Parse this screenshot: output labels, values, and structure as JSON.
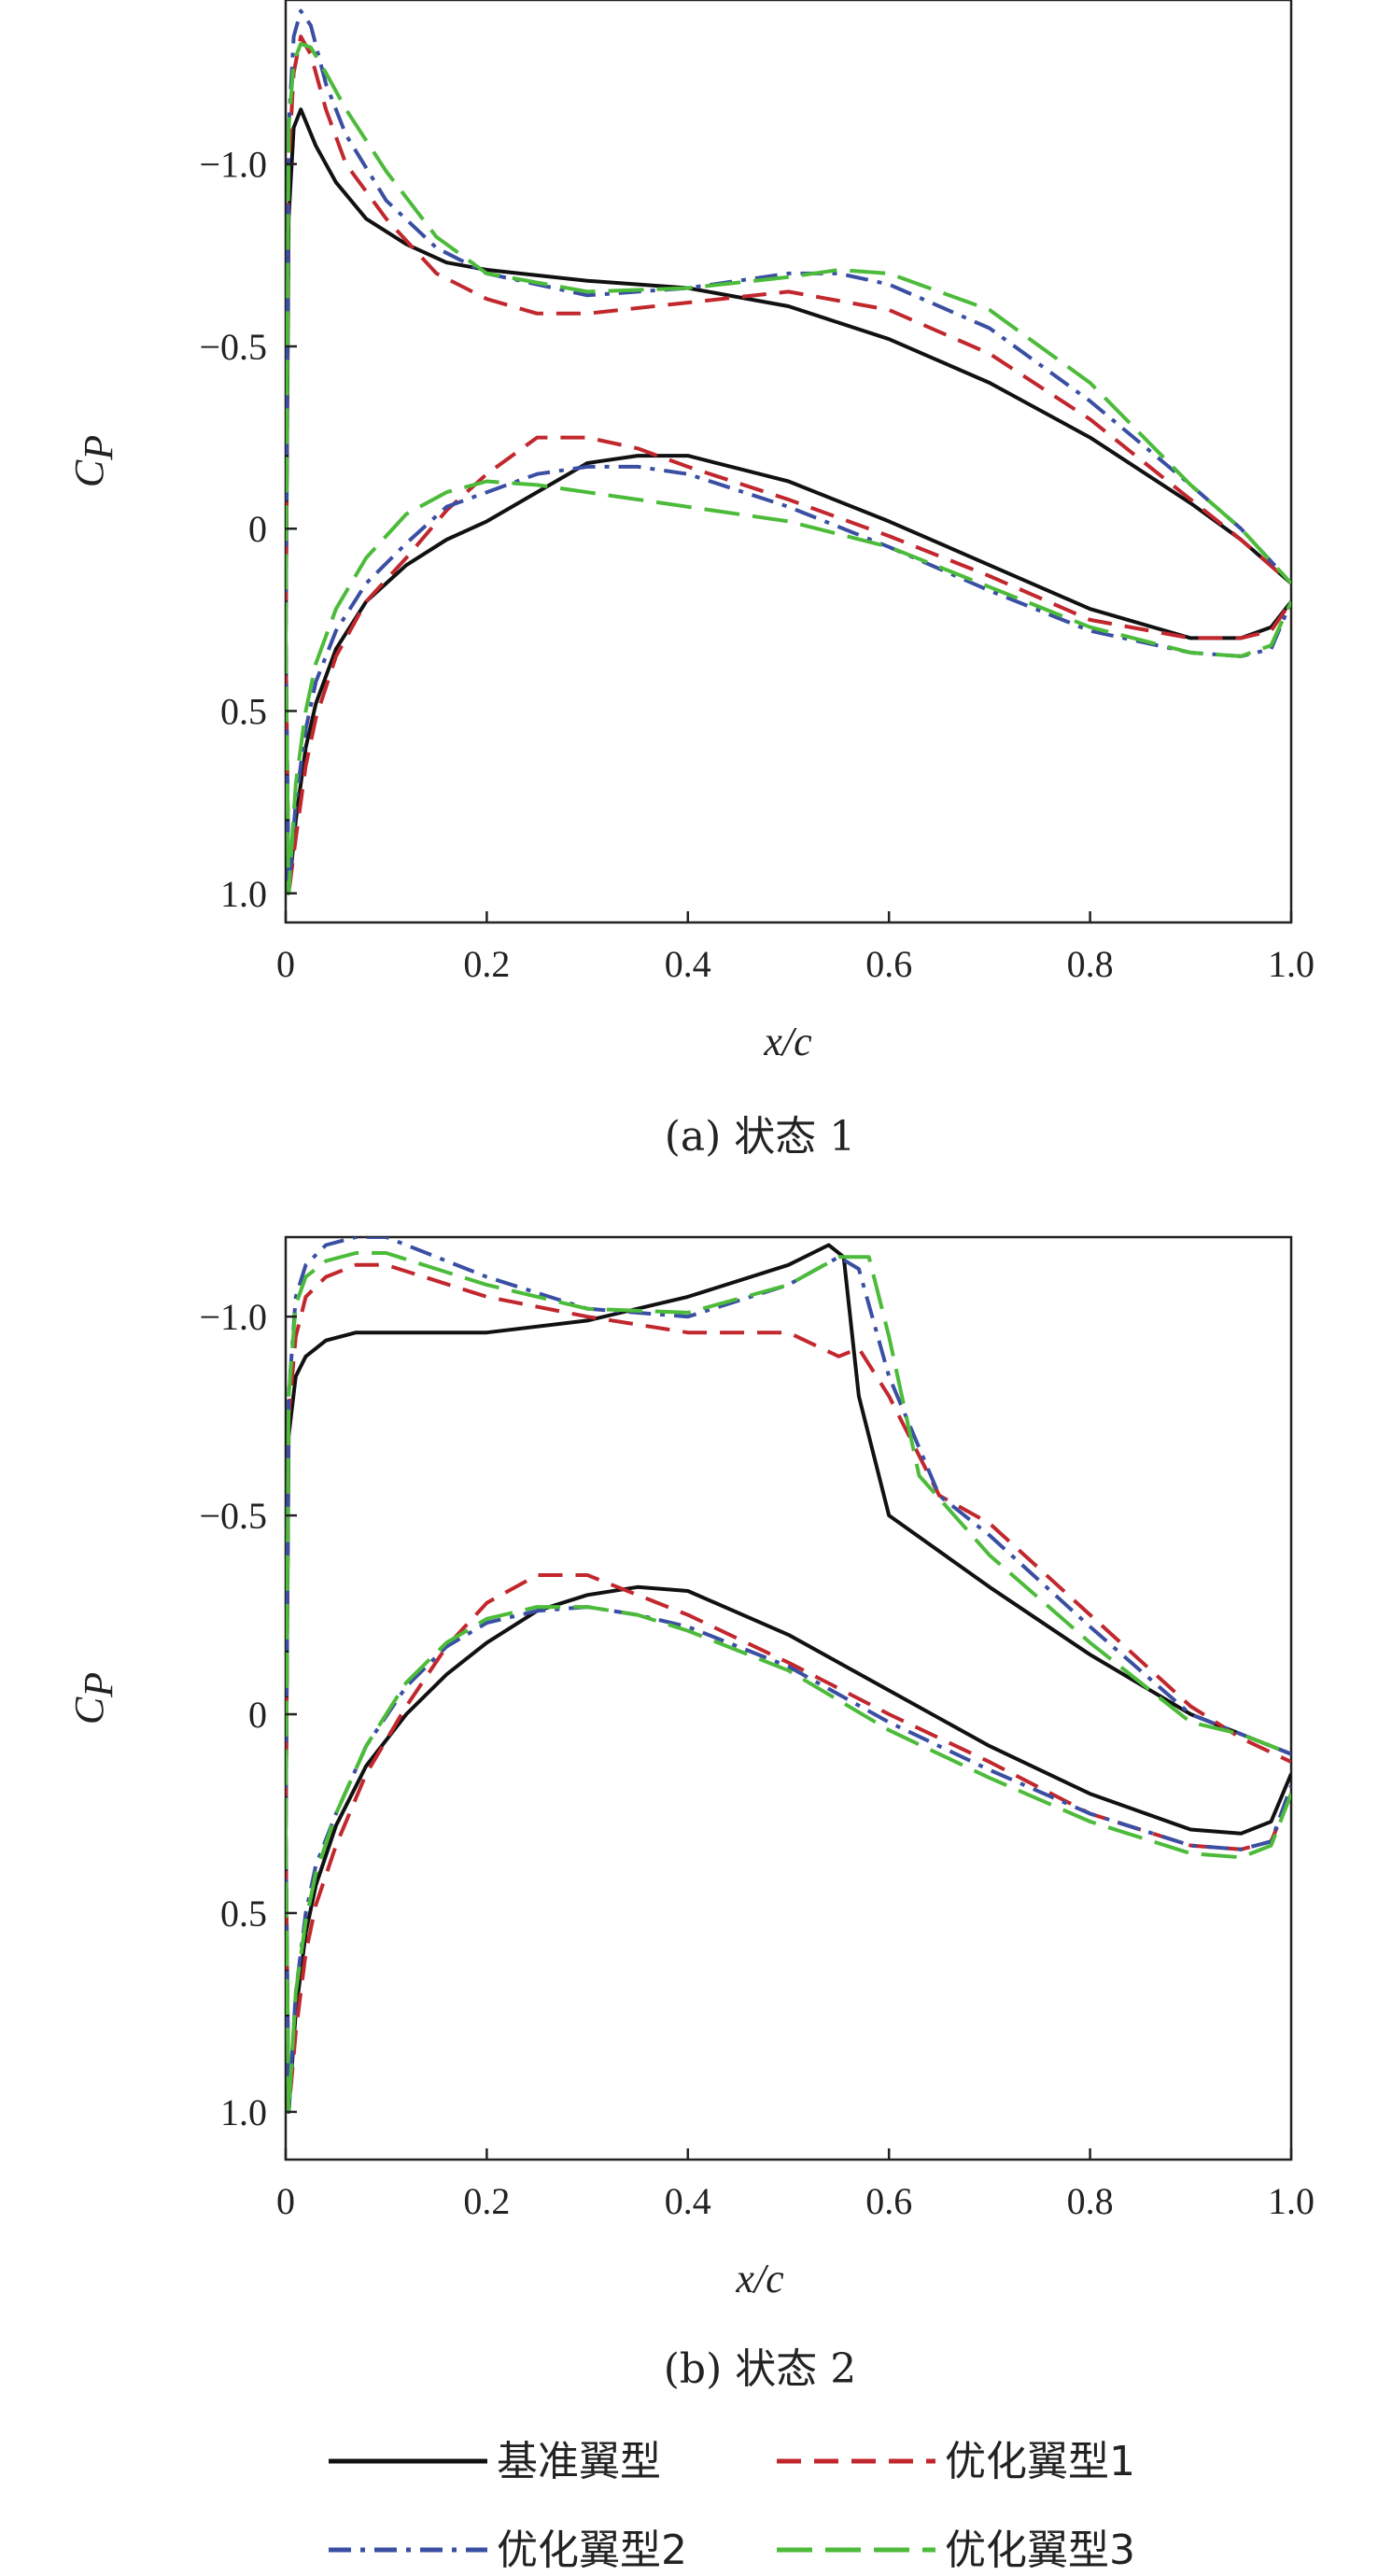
{
  "legend": [
    {
      "name": "基准翼型",
      "color": "#111111",
      "dash": "solid"
    },
    {
      "name": "优化翼型1",
      "color": "#c1272d",
      "dash": "dash"
    },
    {
      "name": "优化翼型2",
      "color": "#3a4fa3",
      "dash": "dashdot"
    },
    {
      "name": "优化翼型3",
      "color": "#4cbb3a",
      "dash": "longdash"
    }
  ],
  "chart_data": [
    {
      "type": "line",
      "caption": "(a) 状态 1",
      "xlabel": "x/c",
      "ylabel_main": "C",
      "ylabel_sub": "P",
      "xlim": [
        0,
        1.0
      ],
      "ylim": [
        1.08,
        -1.45
      ],
      "y_inverted": true,
      "xticks": [
        0,
        0.2,
        0.4,
        0.6,
        0.8,
        1.0
      ],
      "xtick_labels": [
        "0",
        "0.2",
        "0.4",
        "0.6",
        "0.8",
        "1.0"
      ],
      "yticks": [
        -1.0,
        -0.5,
        0,
        0.5,
        1.0
      ],
      "ytick_labels": [
        "−1.0",
        "−0.5",
        "0",
        "0.5",
        "1.0"
      ],
      "series": [
        {
          "name": "基准翼型",
          "upper": {
            "x": [
              0,
              0.003,
              0.008,
              0.015,
              0.03,
              0.05,
              0.08,
              0.12,
              0.16,
              0.2,
              0.3,
              0.4,
              0.5,
              0.6,
              0.7,
              0.8,
              0.9,
              0.95,
              1.0
            ],
            "y": [
              0.3,
              -0.85,
              -1.1,
              -1.15,
              -1.05,
              -0.95,
              -0.85,
              -0.78,
              -0.73,
              -0.71,
              -0.68,
              -0.66,
              -0.61,
              -0.52,
              -0.4,
              -0.25,
              -0.07,
              0.03,
              0.15
            ]
          },
          "lower": {
            "x": [
              0,
              0.003,
              0.01,
              0.02,
              0.03,
              0.05,
              0.08,
              0.12,
              0.16,
              0.2,
              0.3,
              0.35,
              0.4,
              0.5,
              0.6,
              0.7,
              0.8,
              0.9,
              0.95,
              0.98,
              1.0
            ],
            "y": [
              0.3,
              1.0,
              0.8,
              0.6,
              0.48,
              0.33,
              0.2,
              0.1,
              0.03,
              -0.02,
              -0.18,
              -0.2,
              -0.2,
              -0.13,
              -0.02,
              0.1,
              0.22,
              0.3,
              0.3,
              0.27,
              0.2
            ]
          }
        },
        {
          "name": "优化翼型1",
          "upper": {
            "x": [
              0,
              0.003,
              0.008,
              0.015,
              0.025,
              0.04,
              0.06,
              0.1,
              0.15,
              0.2,
              0.25,
              0.3,
              0.4,
              0.5,
              0.6,
              0.7,
              0.8,
              0.9,
              0.95,
              1.0
            ],
            "y": [
              0.3,
              -1.0,
              -1.25,
              -1.35,
              -1.3,
              -1.15,
              -1.0,
              -0.85,
              -0.7,
              -0.63,
              -0.59,
              -0.59,
              -0.62,
              -0.65,
              -0.6,
              -0.48,
              -0.3,
              -0.08,
              0.03,
              0.15
            ]
          },
          "lower": {
            "x": [
              0,
              0.003,
              0.01,
              0.02,
              0.03,
              0.05,
              0.08,
              0.12,
              0.16,
              0.2,
              0.25,
              0.3,
              0.35,
              0.4,
              0.5,
              0.6,
              0.7,
              0.8,
              0.9,
              0.95,
              0.98,
              1.0
            ],
            "y": [
              0.3,
              1.0,
              0.85,
              0.65,
              0.52,
              0.35,
              0.2,
              0.08,
              -0.05,
              -0.15,
              -0.25,
              -0.25,
              -0.22,
              -0.17,
              -0.08,
              0.02,
              0.13,
              0.25,
              0.3,
              0.3,
              0.28,
              0.2
            ]
          }
        },
        {
          "name": "优化翼型2",
          "upper": {
            "x": [
              0,
              0.003,
              0.008,
              0.015,
              0.025,
              0.04,
              0.06,
              0.1,
              0.15,
              0.2,
              0.3,
              0.4,
              0.5,
              0.55,
              0.6,
              0.7,
              0.8,
              0.9,
              0.95,
              1.0
            ],
            "y": [
              0.3,
              -1.1,
              -1.35,
              -1.42,
              -1.38,
              -1.22,
              -1.08,
              -0.9,
              -0.77,
              -0.7,
              -0.64,
              -0.66,
              -0.7,
              -0.7,
              -0.67,
              -0.55,
              -0.35,
              -0.12,
              0.0,
              0.15
            ]
          },
          "lower": {
            "x": [
              0,
              0.003,
              0.01,
              0.02,
              0.03,
              0.05,
              0.08,
              0.12,
              0.16,
              0.2,
              0.25,
              0.3,
              0.35,
              0.4,
              0.5,
              0.6,
              0.7,
              0.8,
              0.9,
              0.95,
              0.98,
              1.0
            ],
            "y": [
              0.3,
              1.0,
              0.75,
              0.55,
              0.42,
              0.28,
              0.15,
              0.04,
              -0.06,
              -0.1,
              -0.15,
              -0.17,
              -0.17,
              -0.15,
              -0.06,
              0.05,
              0.17,
              0.28,
              0.34,
              0.35,
              0.33,
              0.2
            ]
          }
        },
        {
          "name": "优化翼型3",
          "upper": {
            "x": [
              0,
              0.003,
              0.008,
              0.015,
              0.025,
              0.04,
              0.06,
              0.1,
              0.15,
              0.2,
              0.3,
              0.4,
              0.5,
              0.55,
              0.6,
              0.7,
              0.8,
              0.9,
              0.95,
              1.0
            ],
            "y": [
              0.3,
              -1.1,
              -1.28,
              -1.33,
              -1.32,
              -1.25,
              -1.15,
              -0.98,
              -0.8,
              -0.7,
              -0.65,
              -0.66,
              -0.69,
              -0.71,
              -0.7,
              -0.6,
              -0.4,
              -0.12,
              0.0,
              0.15
            ]
          },
          "lower": {
            "x": [
              0,
              0.003,
              0.01,
              0.02,
              0.03,
              0.05,
              0.08,
              0.12,
              0.16,
              0.2,
              0.25,
              0.3,
              0.35,
              0.4,
              0.5,
              0.6,
              0.7,
              0.8,
              0.9,
              0.95,
              0.98,
              1.0
            ],
            "y": [
              0.3,
              1.0,
              0.7,
              0.5,
              0.37,
              0.22,
              0.08,
              -0.04,
              -0.1,
              -0.13,
              -0.12,
              -0.1,
              -0.08,
              -0.06,
              -0.02,
              0.05,
              0.16,
              0.27,
              0.34,
              0.35,
              0.32,
              0.2
            ]
          }
        }
      ]
    },
    {
      "type": "line",
      "caption": "(b) 状态 2",
      "xlabel": "x/c",
      "ylabel_main": "C",
      "ylabel_sub": "P",
      "xlim": [
        0,
        1.0
      ],
      "ylim": [
        1.12,
        -1.2
      ],
      "y_inverted": true,
      "xticks": [
        0,
        0.2,
        0.4,
        0.6,
        0.8,
        1.0
      ],
      "xtick_labels": [
        "0",
        "0.2",
        "0.4",
        "0.6",
        "0.8",
        "1.0"
      ],
      "yticks": [
        -1.0,
        -0.5,
        0,
        0.5,
        1.0
      ],
      "ytick_labels": [
        "−1.0",
        "−0.5",
        "0",
        "0.5",
        "1.0"
      ],
      "series": [
        {
          "name": "基准翼型",
          "upper": {
            "x": [
              0,
              0.003,
              0.01,
              0.02,
              0.04,
              0.07,
              0.1,
              0.2,
              0.3,
              0.4,
              0.5,
              0.54,
              0.555,
              0.57,
              0.6,
              0.7,
              0.8,
              0.9,
              0.95,
              1.0
            ],
            "y": [
              0.3,
              -0.7,
              -0.85,
              -0.9,
              -0.94,
              -0.96,
              -0.96,
              -0.96,
              -0.99,
              -1.05,
              -1.13,
              -1.18,
              -1.15,
              -0.8,
              -0.5,
              -0.32,
              -0.15,
              0.0,
              0.05,
              0.1
            ]
          },
          "lower": {
            "x": [
              0,
              0.003,
              0.01,
              0.02,
              0.03,
              0.05,
              0.08,
              0.12,
              0.16,
              0.2,
              0.25,
              0.3,
              0.35,
              0.4,
              0.5,
              0.6,
              0.7,
              0.8,
              0.9,
              0.95,
              0.98,
              1.0
            ],
            "y": [
              0.3,
              1.0,
              0.75,
              0.55,
              0.43,
              0.28,
              0.13,
              0.0,
              -0.1,
              -0.18,
              -0.26,
              -0.3,
              -0.32,
              -0.31,
              -0.2,
              -0.06,
              0.08,
              0.2,
              0.29,
              0.3,
              0.27,
              0.15
            ]
          }
        },
        {
          "name": "优化翼型1",
          "upper": {
            "x": [
              0,
              0.003,
              0.01,
              0.02,
              0.04,
              0.07,
              0.1,
              0.2,
              0.3,
              0.4,
              0.5,
              0.55,
              0.57,
              0.6,
              0.65,
              0.7,
              0.8,
              0.9,
              0.95,
              1.0
            ],
            "y": [
              0.3,
              -0.75,
              -0.95,
              -1.05,
              -1.1,
              -1.13,
              -1.13,
              -1.05,
              -1.0,
              -0.96,
              -0.96,
              -0.9,
              -0.92,
              -0.8,
              -0.55,
              -0.48,
              -0.25,
              -0.02,
              0.06,
              0.12
            ]
          },
          "lower": {
            "x": [
              0,
              0.003,
              0.01,
              0.02,
              0.03,
              0.05,
              0.08,
              0.12,
              0.16,
              0.2,
              0.25,
              0.3,
              0.35,
              0.4,
              0.5,
              0.6,
              0.7,
              0.8,
              0.9,
              0.95,
              0.98,
              1.0
            ],
            "y": [
              0.3,
              1.0,
              0.8,
              0.6,
              0.48,
              0.33,
              0.15,
              -0.02,
              -0.17,
              -0.28,
              -0.35,
              -0.35,
              -0.3,
              -0.25,
              -0.13,
              0.0,
              0.12,
              0.25,
              0.33,
              0.34,
              0.32,
              0.2
            ]
          }
        },
        {
          "name": "优化翼型2",
          "upper": {
            "x": [
              0,
              0.003,
              0.01,
              0.02,
              0.04,
              0.07,
              0.1,
              0.15,
              0.2,
              0.3,
              0.4,
              0.5,
              0.55,
              0.57,
              0.6,
              0.65,
              0.7,
              0.8,
              0.9,
              0.95,
              1.0
            ],
            "y": [
              0.3,
              -0.8,
              -1.05,
              -1.13,
              -1.18,
              -1.2,
              -1.2,
              -1.15,
              -1.1,
              -1.02,
              -1.0,
              -1.08,
              -1.15,
              -1.12,
              -0.85,
              -0.55,
              -0.45,
              -0.22,
              0.0,
              0.05,
              0.1
            ]
          },
          "lower": {
            "x": [
              0,
              0.003,
              0.01,
              0.02,
              0.03,
              0.05,
              0.08,
              0.12,
              0.16,
              0.2,
              0.25,
              0.3,
              0.35,
              0.4,
              0.5,
              0.6,
              0.7,
              0.8,
              0.9,
              0.95,
              0.98,
              1.0
            ],
            "y": [
              0.3,
              1.0,
              0.7,
              0.5,
              0.38,
              0.25,
              0.08,
              -0.07,
              -0.17,
              -0.23,
              -0.26,
              -0.27,
              -0.25,
              -0.22,
              -0.12,
              0.02,
              0.14,
              0.25,
              0.33,
              0.34,
              0.32,
              0.18
            ]
          }
        },
        {
          "name": "优化翼型3",
          "upper": {
            "x": [
              0,
              0.003,
              0.01,
              0.02,
              0.04,
              0.07,
              0.1,
              0.15,
              0.2,
              0.3,
              0.4,
              0.5,
              0.55,
              0.58,
              0.6,
              0.63,
              0.7,
              0.8,
              0.9,
              0.95,
              1.0
            ],
            "y": [
              0.3,
              -0.8,
              -1.03,
              -1.1,
              -1.14,
              -1.16,
              -1.16,
              -1.12,
              -1.08,
              -1.02,
              -1.01,
              -1.08,
              -1.15,
              -1.15,
              -0.95,
              -0.6,
              -0.4,
              -0.18,
              0.02,
              0.05,
              0.1
            ]
          },
          "lower": {
            "x": [
              0,
              0.003,
              0.01,
              0.02,
              0.03,
              0.05,
              0.08,
              0.12,
              0.16,
              0.2,
              0.25,
              0.3,
              0.35,
              0.4,
              0.5,
              0.6,
              0.7,
              0.8,
              0.9,
              0.95,
              0.98,
              1.0
            ],
            "y": [
              0.3,
              1.0,
              0.7,
              0.52,
              0.4,
              0.25,
              0.08,
              -0.08,
              -0.18,
              -0.24,
              -0.27,
              -0.27,
              -0.25,
              -0.21,
              -0.11,
              0.04,
              0.16,
              0.27,
              0.35,
              0.36,
              0.33,
              0.2
            ]
          }
        }
      ]
    }
  ]
}
